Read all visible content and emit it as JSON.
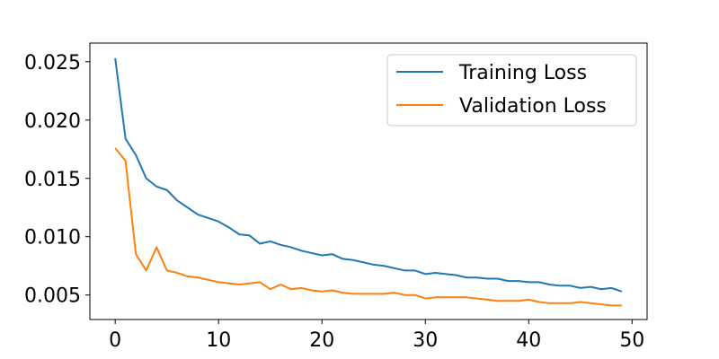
{
  "chart_data": {
    "type": "line",
    "title": "",
    "xlabel": "",
    "ylabel": "",
    "xlim": [
      -2.45,
      51.45
    ],
    "ylim": [
      0.0029,
      0.0266
    ],
    "xticks": [
      0,
      10,
      20,
      30,
      40,
      50
    ],
    "yticks": [
      0.005,
      0.01,
      0.015,
      0.02,
      0.025
    ],
    "xtick_labels": [
      "0",
      "10",
      "20",
      "30",
      "40",
      "50"
    ],
    "ytick_labels": [
      "0.005",
      "0.010",
      "0.015",
      "0.020",
      "0.025"
    ],
    "grid": false,
    "legend_position": "top-right",
    "x": [
      0,
      1,
      2,
      3,
      4,
      5,
      6,
      7,
      8,
      9,
      10,
      11,
      12,
      13,
      14,
      15,
      16,
      17,
      18,
      19,
      20,
      21,
      22,
      23,
      24,
      25,
      26,
      27,
      28,
      29,
      30,
      31,
      32,
      33,
      34,
      35,
      36,
      37,
      38,
      39,
      40,
      41,
      42,
      43,
      44,
      45,
      46,
      47,
      48,
      49
    ],
    "series": [
      {
        "name": "Training Loss",
        "color": "#1f77b4",
        "values": [
          0.0253,
          0.0184,
          0.017,
          0.015,
          0.0143,
          0.014,
          0.0131,
          0.0125,
          0.0119,
          0.0116,
          0.0113,
          0.0108,
          0.0102,
          0.0101,
          0.0094,
          0.0096,
          0.0093,
          0.0091,
          0.0088,
          0.0086,
          0.0084,
          0.0085,
          0.0081,
          0.008,
          0.0078,
          0.0076,
          0.0075,
          0.0073,
          0.0071,
          0.0071,
          0.0068,
          0.0069,
          0.0068,
          0.0067,
          0.0065,
          0.0065,
          0.0064,
          0.0064,
          0.0062,
          0.0062,
          0.0061,
          0.0061,
          0.0059,
          0.0058,
          0.0058,
          0.0056,
          0.0057,
          0.0055,
          0.0056,
          0.0053
        ]
      },
      {
        "name": "Validation Loss",
        "color": "#ff7f0e",
        "values": [
          0.0176,
          0.0165,
          0.0085,
          0.0071,
          0.0091,
          0.0071,
          0.0069,
          0.0066,
          0.0065,
          0.0063,
          0.0061,
          0.006,
          0.0059,
          0.006,
          0.0061,
          0.0055,
          0.0059,
          0.0055,
          0.0056,
          0.0054,
          0.0053,
          0.0054,
          0.0052,
          0.0051,
          0.0051,
          0.0051,
          0.0051,
          0.0052,
          0.005,
          0.005,
          0.0047,
          0.0048,
          0.0048,
          0.0048,
          0.0048,
          0.0047,
          0.0046,
          0.0045,
          0.0045,
          0.0045,
          0.0046,
          0.0044,
          0.0043,
          0.0043,
          0.0043,
          0.0044,
          0.0043,
          0.0042,
          0.0041,
          0.0041
        ]
      }
    ]
  }
}
